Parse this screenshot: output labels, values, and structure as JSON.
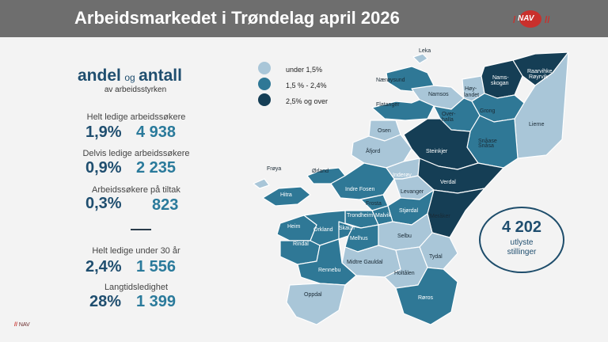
{
  "header": {
    "title": "Arbeidsmarkedet i Trøndelag april 2026",
    "logo": "NAV"
  },
  "left_panel": {
    "heading_andel": "andel",
    "heading_og": "og",
    "heading_antall": "antall",
    "subheading": "av arbeidsstyrken",
    "stats": [
      {
        "label": "Helt ledige arbeidssøkere",
        "percent": "1,9%",
        "count": "4 938"
      },
      {
        "label": "Delvis ledige arbeidssøkere",
        "percent": "0,9%",
        "count": "2 235"
      },
      {
        "label": "Arbeidssøkere på tiltak",
        "percent": "0,3%",
        "count": "823"
      },
      {
        "label": "Helt ledige under 30 år",
        "percent": "2,4%",
        "count": "1 556"
      },
      {
        "label": "Langtidsledighet",
        "percent": "28%",
        "count": "1 399"
      }
    ]
  },
  "legend": {
    "items": [
      {
        "label": "under 1,5%",
        "color": "#a9c6d8"
      },
      {
        "label": "1,5 % - 2,4%",
        "color": "#2f7896"
      },
      {
        "label": "2,5% og over",
        "color": "#153e55"
      }
    ]
  },
  "vacancies": {
    "value": "4 202",
    "label_line1": "utlyste",
    "label_line2": "stillinger"
  },
  "map_labels": [
    "Leka",
    "Nærøysund",
    "Namsos",
    "Høy-",
    "landet",
    "Nams-",
    "skogan",
    "Raarvihke",
    "Røyrvik",
    "Flatanger",
    "Over-",
    "halla",
    "Grong",
    "Lierne",
    "Osen",
    "Snåase",
    "Snåsa",
    "Åfjord",
    "Steinkjer",
    "Frøya",
    "Ørland",
    "Inderøy",
    "Verdal",
    "Indre Fosen",
    "Levanger",
    "Hitra",
    "Frosta",
    "Stjørdal",
    "Trondheim",
    "Malvik",
    "Meråker",
    "Heim",
    "Orkland",
    "Skaun",
    "Melhus",
    "Selbu",
    "Rindal",
    "Midtre Gauldal",
    "Tydal",
    "Rennebu",
    "Holtålen",
    "Oppdal",
    "Røros"
  ],
  "footer": {
    "prefix": "//",
    "text": "NAV"
  }
}
